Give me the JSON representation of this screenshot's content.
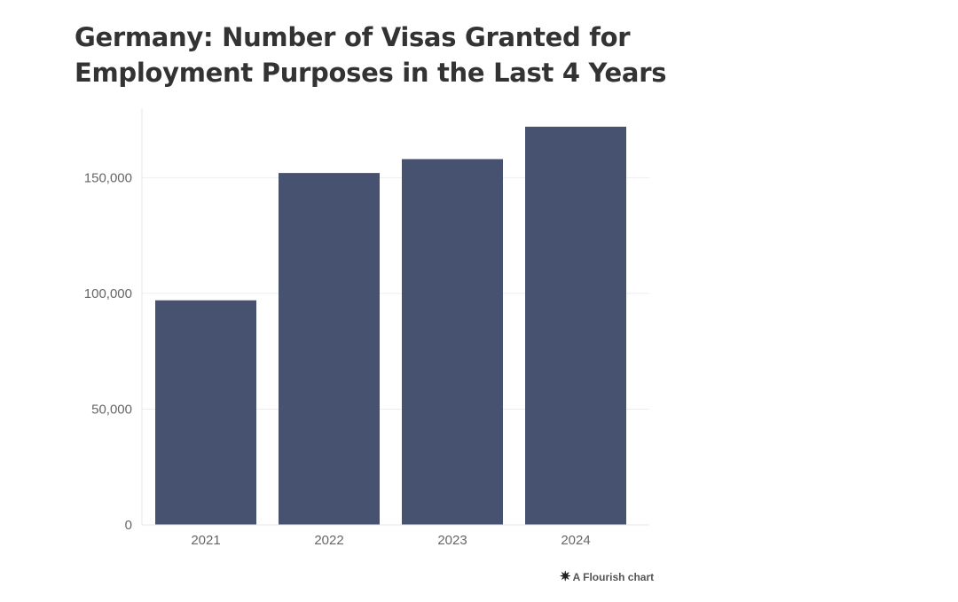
{
  "chart_data": {
    "type": "bar",
    "title": "Germany: Number of Visas Granted for Employment Purposes in the Last 4 Years",
    "title_lines": [
      "Germany: Number of Visas Granted for",
      "Employment Purposes in the Last 4 Years"
    ],
    "categories": [
      "2021",
      "2022",
      "2023",
      "2024"
    ],
    "values": [
      97000,
      152000,
      158000,
      172000
    ],
    "ylim": [
      0,
      180000
    ],
    "yticks": [
      0,
      50000,
      100000,
      150000
    ],
    "ytick_labels": [
      "0",
      "50,000",
      "100,000",
      "150,000"
    ],
    "xlabel": "",
    "ylabel": "",
    "grid": true,
    "bar_color": "#475170",
    "grid_color": "#eaeef0",
    "tick_label_color": "#666666"
  },
  "credit": {
    "logo_icon": "flourish-icon",
    "logo_glyph": "✷",
    "text": "A Flourish chart"
  }
}
